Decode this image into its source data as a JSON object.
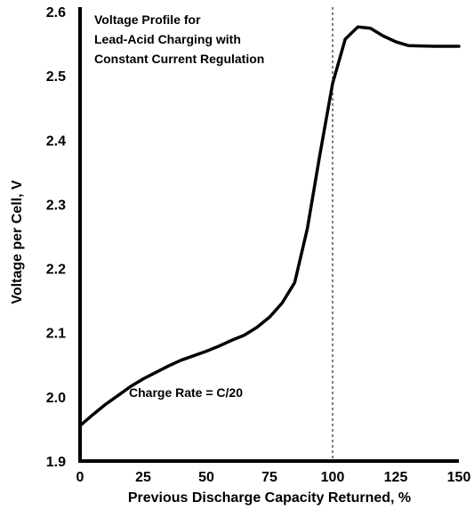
{
  "chart_data": {
    "type": "line",
    "title_lines": [
      "Voltage Profile for",
      "Lead-Acid Charging with",
      "Constant Current Regulation"
    ],
    "xlabel": "Previous Discharge Capacity Returned, %",
    "ylabel": "Voltage per Cell, V",
    "xlim": [
      0,
      150
    ],
    "ylim": [
      1.9,
      2.6
    ],
    "x_ticks": [
      "0",
      "25",
      "50",
      "75",
      "100",
      "125",
      "150"
    ],
    "y_ticks": [
      "1.9",
      "2.0",
      "2.1",
      "2.2",
      "2.3",
      "2.4",
      "2.5",
      "2.6"
    ],
    "grid": false,
    "reference_line": {
      "x": 100,
      "style": "dashed"
    },
    "annotation": "Charge Rate = C/20",
    "series": [
      {
        "x": [
          0,
          5,
          10,
          15,
          20,
          25,
          30,
          35,
          40,
          45,
          50,
          55,
          60,
          65,
          70,
          75,
          80,
          85,
          90,
          95,
          100,
          105,
          110,
          115,
          120,
          125,
          130,
          140,
          150
        ],
        "y": [
          1.955,
          1.972,
          1.988,
          2.002,
          2.016,
          2.028,
          2.038,
          2.048,
          2.057,
          2.064,
          2.071,
          2.079,
          2.088,
          2.096,
          2.108,
          2.124,
          2.146,
          2.178,
          2.262,
          2.378,
          2.488,
          2.557,
          2.576,
          2.574,
          2.562,
          2.553,
          2.547,
          2.546,
          2.546
        ]
      }
    ]
  }
}
